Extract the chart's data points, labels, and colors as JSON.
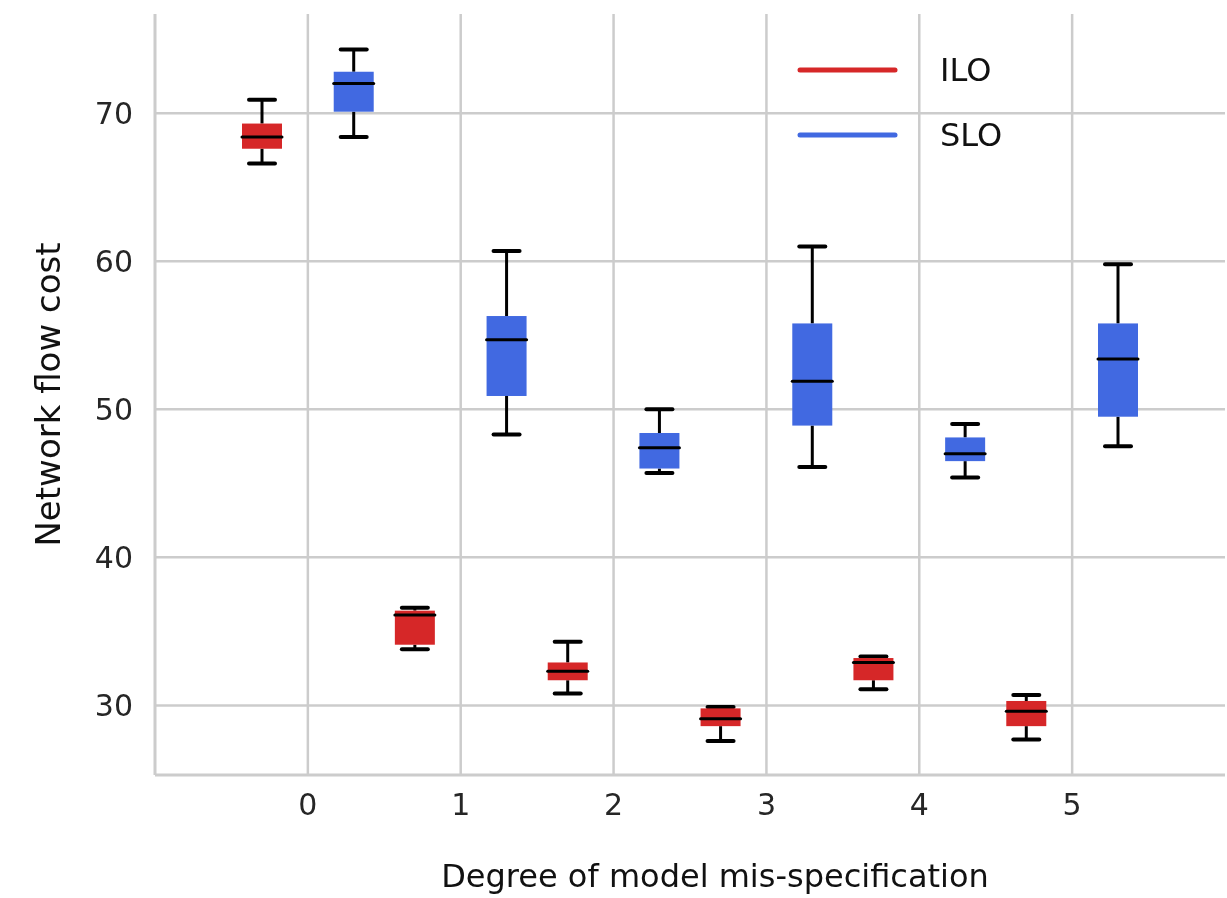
{
  "chart_data": {
    "type": "box",
    "xlabel": "Degree of model mis-specification",
    "ylabel": "Network flow cost",
    "categories": [
      "0",
      "1",
      "2",
      "3",
      "4",
      "5"
    ],
    "ylim": [
      25.3,
      76.7
    ],
    "yticks": [
      30,
      40,
      50,
      60,
      70
    ],
    "grid": true,
    "legend": "top right",
    "series": [
      {
        "name": "ILO",
        "color": "#d62728",
        "boxes": [
          {
            "low": 66.6,
            "q1": 67.6,
            "median": 68.4,
            "q3": 69.3,
            "high": 70.9
          },
          {
            "low": 33.8,
            "q1": 34.1,
            "median": 36.1,
            "q3": 36.4,
            "high": 36.6
          },
          {
            "low": 30.8,
            "q1": 31.7,
            "median": 32.3,
            "q3": 32.9,
            "high": 34.3
          },
          {
            "low": 27.6,
            "q1": 28.6,
            "median": 29.1,
            "q3": 29.8,
            "high": 29.9
          },
          {
            "low": 31.1,
            "q1": 31.7,
            "median": 32.9,
            "q3": 33.2,
            "high": 33.3
          },
          {
            "low": 27.7,
            "q1": 28.6,
            "median": 29.6,
            "q3": 30.3,
            "high": 30.7
          }
        ]
      },
      {
        "name": "SLO",
        "color": "#4169e1",
        "boxes": [
          {
            "low": 68.4,
            "q1": 70.1,
            "median": 72.0,
            "q3": 72.8,
            "high": 74.3
          },
          {
            "low": 48.3,
            "q1": 50.9,
            "median": 54.7,
            "q3": 56.3,
            "high": 60.7
          },
          {
            "low": 45.7,
            "q1": 46.0,
            "median": 47.4,
            "q3": 48.4,
            "high": 50.0
          },
          {
            "low": 46.1,
            "q1": 48.9,
            "median": 51.9,
            "q3": 55.8,
            "high": 61.0
          },
          {
            "low": 45.4,
            "q1": 46.5,
            "median": 47.0,
            "q3": 48.1,
            "high": 49.0
          },
          {
            "low": 47.5,
            "q1": 49.5,
            "median": 53.4,
            "q3": 55.8,
            "high": 59.8
          }
        ]
      }
    ]
  }
}
